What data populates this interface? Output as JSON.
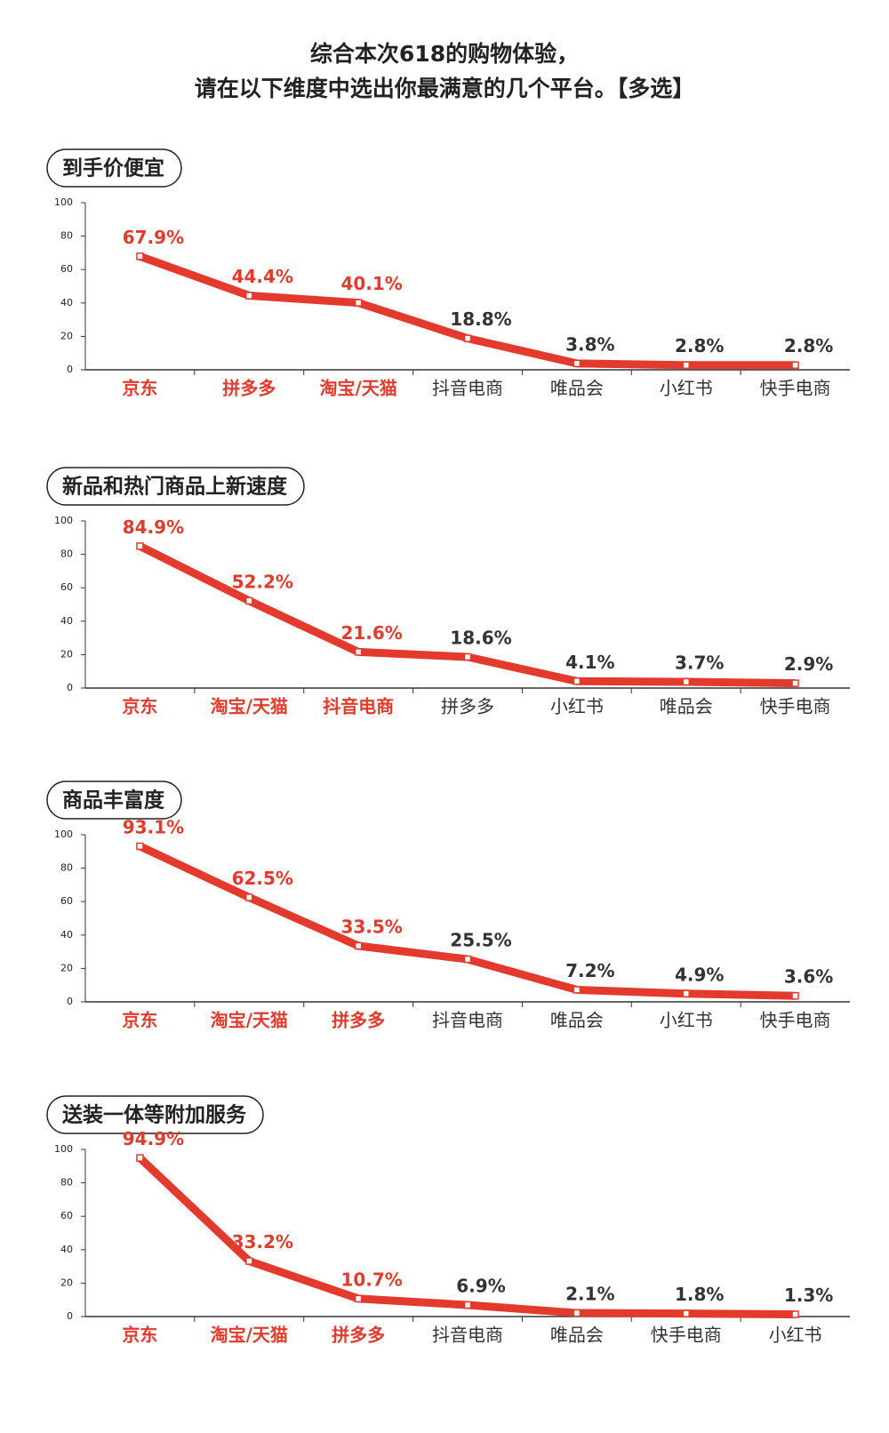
{
  "chart_data": [
    {
      "type": "line",
      "title": "到手价便宜",
      "categories": [
        "京东",
        "拼多多",
        "淘宝/天猫",
        "抖音电商",
        "唯品会",
        "小红书",
        "快手电商"
      ],
      "values": [
        67.9,
        44.4,
        40.1,
        18.8,
        3.8,
        2.8,
        2.8
      ],
      "value_labels": [
        "67.9%",
        "44.4%",
        "40.1%",
        "18.8%",
        "3.8%",
        "2.8%",
        "2.8%"
      ],
      "color": "#e23b2e",
      "label_colors": [
        "#e23b2e",
        "#e23b2e",
        "#e23b2e",
        "#333333",
        "#333333",
        "#333333",
        "#333333"
      ],
      "ylim": [
        0,
        100
      ],
      "yticks": [
        0,
        20,
        40,
        60,
        80,
        100
      ]
    },
    {
      "type": "line",
      "title": "新品和热门商品上新速度",
      "categories": [
        "京东",
        "淘宝/天猫",
        "抖音电商",
        "拼多多",
        "小红书",
        "唯品会",
        "快手电商"
      ],
      "values": [
        84.9,
        52.2,
        21.6,
        18.6,
        4.1,
        3.7,
        2.9
      ],
      "value_labels": [
        "84.9%",
        "52.2%",
        "21.6%",
        "18.6%",
        "4.1%",
        "3.7%",
        "2.9%"
      ],
      "color": "#e23b2e",
      "label_colors": [
        "#e23b2e",
        "#e23b2e",
        "#e23b2e",
        "#333333",
        "#333333",
        "#333333",
        "#333333"
      ],
      "ylim": [
        0,
        100
      ],
      "yticks": [
        0,
        20,
        40,
        60,
        80,
        100
      ]
    },
    {
      "type": "line",
      "title": "商品丰富度",
      "categories": [
        "京东",
        "淘宝/天猫",
        "拼多多",
        "抖音电商",
        "唯品会",
        "小红书",
        "快手电商"
      ],
      "values": [
        93.1,
        62.5,
        33.5,
        25.5,
        7.2,
        4.9,
        3.6
      ],
      "value_labels": [
        "93.1%",
        "62.5%",
        "33.5%",
        "25.5%",
        "7.2%",
        "4.9%",
        "3.6%"
      ],
      "color": "#e23b2e",
      "label_colors": [
        "#e23b2e",
        "#e23b2e",
        "#e23b2e",
        "#333333",
        "#333333",
        "#333333",
        "#333333"
      ],
      "ylim": [
        0,
        100
      ],
      "yticks": [
        0,
        20,
        40,
        60,
        80,
        100
      ]
    },
    {
      "type": "line",
      "title": "送装一体等附加服务",
      "categories": [
        "京东",
        "淘宝/天猫",
        "拼多多",
        "抖音电商",
        "唯品会",
        "快手电商",
        "小红书"
      ],
      "values": [
        94.9,
        33.2,
        10.7,
        6.9,
        2.1,
        1.8,
        1.3
      ],
      "value_labels": [
        "94.9%",
        "33.2%",
        "10.7%",
        "6.9%",
        "2.1%",
        "1.8%",
        "1.3%"
      ],
      "color": "#e23b2e",
      "label_colors": [
        "#e23b2e",
        "#e23b2e",
        "#e23b2e",
        "#333333",
        "#333333",
        "#333333",
        "#333333"
      ],
      "ylim": [
        0,
        100
      ],
      "yticks": [
        0,
        20,
        40,
        60,
        80,
        100
      ]
    }
  ],
  "title": [
    "综合本次618的购物体验，",
    "请在以下维度中选出你最满意的几个平台。【多选】"
  ]
}
